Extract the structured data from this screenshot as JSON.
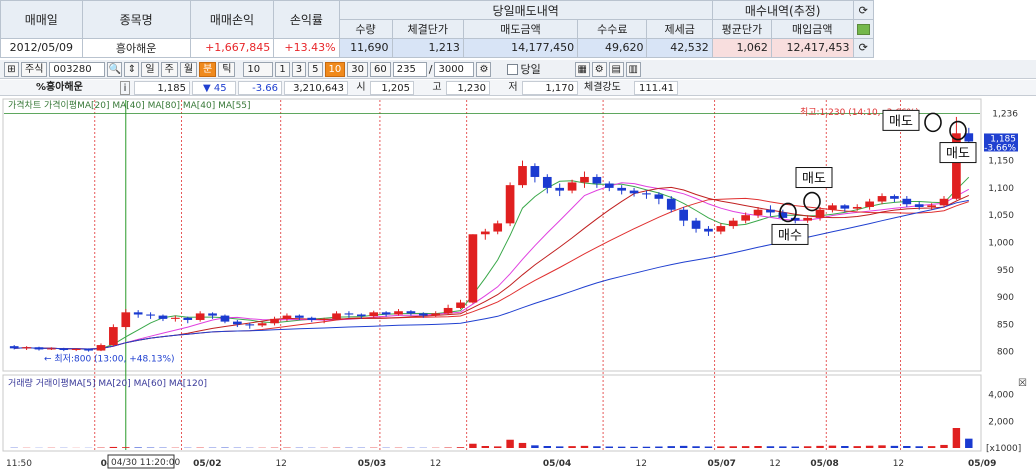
{
  "summary": {
    "headers": [
      "매매일",
      "종목명",
      "매매손익",
      "손익률"
    ],
    "group_sell": "당일매도내역",
    "group_buy": "매수내역(추정)",
    "sell_cols": [
      "수량",
      "체결단가",
      "매도금액",
      "수수료",
      "제세금"
    ],
    "buy_cols": [
      "평균단가",
      "매입금액"
    ],
    "row": {
      "date": "2012/05/09",
      "name": "흥아해운",
      "pnl": "+1,667,845",
      "rate": "+13.43%",
      "qty": "11,690",
      "price": "1,213",
      "sell_amt": "14,177,450",
      "fee": "49,620",
      "tax": "42,532",
      "avg": "1,062",
      "buy_amt": "12,417,453"
    },
    "icons": [
      "refresh-icon",
      "excel-icon",
      "refresh-icon"
    ]
  },
  "toolbar": {
    "market": "주식",
    "code": "003280",
    "periods": [
      "일",
      "주",
      "월",
      "분",
      "틱"
    ],
    "selected_period": "분",
    "interval": "10",
    "intervals": [
      "1",
      "3",
      "5",
      "10",
      "30",
      "60"
    ],
    "selected_interval": "10",
    "count": "235",
    "total": "3000",
    "today_label": "당일"
  },
  "info": {
    "name": "%흥아해운",
    "price": "1,185",
    "change": "▼ 45",
    "change_pct": "-3.66",
    "volume": "3,210,643",
    "open_label": "시",
    "open": "1,205",
    "high_label": "고",
    "high": "1,230",
    "low_label": "저",
    "low": "1,170",
    "strength_label": "체결강도",
    "strength": "111.41"
  },
  "chart_data": {
    "type": "candlestick",
    "price_legend": "가격차트 가격이평MA[20] MA[40] MA[80] MA[40] MA[55]",
    "volume_legend": "거래량 거래이평MA[5] MA[20] MA[60] MA[120]",
    "price_ylim": [
      770,
      1250
    ],
    "price_ticks": [
      800,
      850,
      900,
      950,
      1000,
      1050,
      1100,
      1150
    ],
    "current_price_label": "1,185",
    "current_pct_label": "-3.66%",
    "top_line_label": "1,236",
    "top_line_value": 1236,
    "high_annotation": "최고:1,230 (14:10, -3.66%)",
    "high_value": 1230,
    "low_annotation": "최저:800 (13:00, +48.13%)",
    "low_value": 800,
    "volume_ticks": [
      "4,000",
      "2,000"
    ],
    "volume_unit": "[x1000]",
    "x_labels": [
      "11:50",
      "04/30",
      "05/02",
      "12",
      "05/03",
      "12",
      "05/04",
      "12",
      "05/07",
      "12",
      "05/08",
      "12",
      "05/09"
    ],
    "cursor_label": "04/30 11:20:00",
    "trade_marks": [
      {
        "label": "매수",
        "price": 1055
      },
      {
        "label": "매도",
        "price": 1075
      },
      {
        "label": "매도",
        "price": 1220
      },
      {
        "label": "매도",
        "price": 1205
      }
    ],
    "candles": [
      [
        810,
        806,
        812,
        804
      ],
      [
        806,
        808,
        810,
        803
      ],
      [
        808,
        804,
        809,
        802
      ],
      [
        804,
        806,
        808,
        803
      ],
      [
        806,
        803,
        807,
        801
      ],
      [
        803,
        805,
        806,
        801
      ],
      [
        805,
        802,
        806,
        800
      ],
      [
        802,
        812,
        815,
        801
      ],
      [
        812,
        845,
        850,
        810
      ],
      [
        845,
        872,
        878,
        840
      ],
      [
        872,
        868,
        876,
        862
      ],
      [
        868,
        866,
        872,
        860
      ],
      [
        866,
        860,
        868,
        856
      ],
      [
        860,
        862,
        866,
        855
      ],
      [
        862,
        858,
        864,
        852
      ],
      [
        858,
        870,
        874,
        855
      ],
      [
        870,
        866,
        872,
        860
      ],
      [
        866,
        855,
        868,
        852
      ],
      [
        855,
        850,
        858,
        845
      ],
      [
        850,
        848,
        853,
        842
      ],
      [
        848,
        852,
        856,
        845
      ],
      [
        852,
        860,
        864,
        848
      ],
      [
        860,
        866,
        870,
        856
      ],
      [
        866,
        862,
        868,
        858
      ],
      [
        862,
        858,
        864,
        854
      ],
      [
        858,
        860,
        862,
        852
      ],
      [
        860,
        870,
        874,
        858
      ],
      [
        870,
        868,
        874,
        862
      ],
      [
        868,
        865,
        870,
        860
      ],
      [
        865,
        872,
        875,
        862
      ],
      [
        872,
        868,
        874,
        864
      ],
      [
        868,
        874,
        878,
        866
      ],
      [
        874,
        870,
        876,
        866
      ],
      [
        870,
        866,
        872,
        862
      ],
      [
        866,
        870,
        874,
        864
      ],
      [
        870,
        880,
        886,
        868
      ],
      [
        880,
        890,
        895,
        878
      ],
      [
        890,
        1015,
        1015,
        888
      ],
      [
        1015,
        1020,
        1025,
        1005
      ],
      [
        1020,
        1035,
        1040,
        1015
      ],
      [
        1035,
        1105,
        1110,
        1030
      ],
      [
        1105,
        1140,
        1150,
        1100
      ],
      [
        1140,
        1120,
        1145,
        1110
      ],
      [
        1120,
        1100,
        1125,
        1090
      ],
      [
        1100,
        1095,
        1108,
        1085
      ],
      [
        1095,
        1110,
        1115,
        1090
      ],
      [
        1110,
        1120,
        1130,
        1100
      ],
      [
        1120,
        1108,
        1125,
        1100
      ],
      [
        1108,
        1100,
        1112,
        1094
      ],
      [
        1100,
        1095,
        1105,
        1088
      ],
      [
        1095,
        1090,
        1100,
        1084
      ],
      [
        1090,
        1088,
        1095,
        1080
      ],
      [
        1088,
        1080,
        1092,
        1070
      ],
      [
        1080,
        1060,
        1085,
        1055
      ],
      [
        1060,
        1040,
        1065,
        1030
      ],
      [
        1040,
        1025,
        1045,
        1018
      ],
      [
        1025,
        1020,
        1030,
        1012
      ],
      [
        1020,
        1030,
        1035,
        1015
      ],
      [
        1030,
        1040,
        1045,
        1025
      ],
      [
        1040,
        1050,
        1055,
        1035
      ],
      [
        1050,
        1060,
        1065,
        1045
      ],
      [
        1060,
        1055,
        1068,
        1048
      ],
      [
        1055,
        1045,
        1060,
        1040
      ],
      [
        1045,
        1040,
        1050,
        1035
      ],
      [
        1040,
        1045,
        1050,
        1036
      ],
      [
        1045,
        1060,
        1065,
        1040
      ],
      [
        1060,
        1068,
        1072,
        1055
      ],
      [
        1068,
        1062,
        1070,
        1056
      ],
      [
        1062,
        1065,
        1070,
        1058
      ],
      [
        1065,
        1075,
        1080,
        1060
      ],
      [
        1075,
        1085,
        1090,
        1070
      ],
      [
        1085,
        1080,
        1088,
        1074
      ],
      [
        1080,
        1070,
        1085,
        1065
      ],
      [
        1070,
        1065,
        1075,
        1060
      ],
      [
        1065,
        1068,
        1072,
        1060
      ],
      [
        1068,
        1080,
        1085,
        1064
      ],
      [
        1080,
        1200,
        1230,
        1078
      ],
      [
        1200,
        1185,
        1210,
        1170
      ]
    ],
    "volumes": [
      20,
      15,
      12,
      18,
      14,
      10,
      12,
      30,
      80,
      60,
      40,
      30,
      25,
      22,
      20,
      28,
      24,
      30,
      22,
      18,
      20,
      26,
      30,
      22,
      18,
      20,
      28,
      24,
      22,
      26,
      20,
      24,
      22,
      18,
      20,
      35,
      60,
      320,
      150,
      120,
      620,
      380,
      200,
      150,
      120,
      140,
      160,
      130,
      110,
      100,
      90,
      95,
      110,
      140,
      160,
      130,
      110,
      120,
      130,
      140,
      150,
      130,
      120,
      110,
      130,
      160,
      180,
      150,
      140,
      170,
      200,
      160,
      150,
      130,
      140,
      230,
      1500,
      700
    ],
    "ma_series": [
      {
        "name": "MA[20]",
        "color": "#3aa84a"
      },
      {
        "name": "MA[40]",
        "color": "#e040e0"
      },
      {
        "name": "MA[80]",
        "color": "#e03030"
      },
      {
        "name": "MA[55]",
        "color": "#c02020"
      },
      {
        "name": "MA[120]",
        "color": "#2040d0"
      }
    ]
  }
}
